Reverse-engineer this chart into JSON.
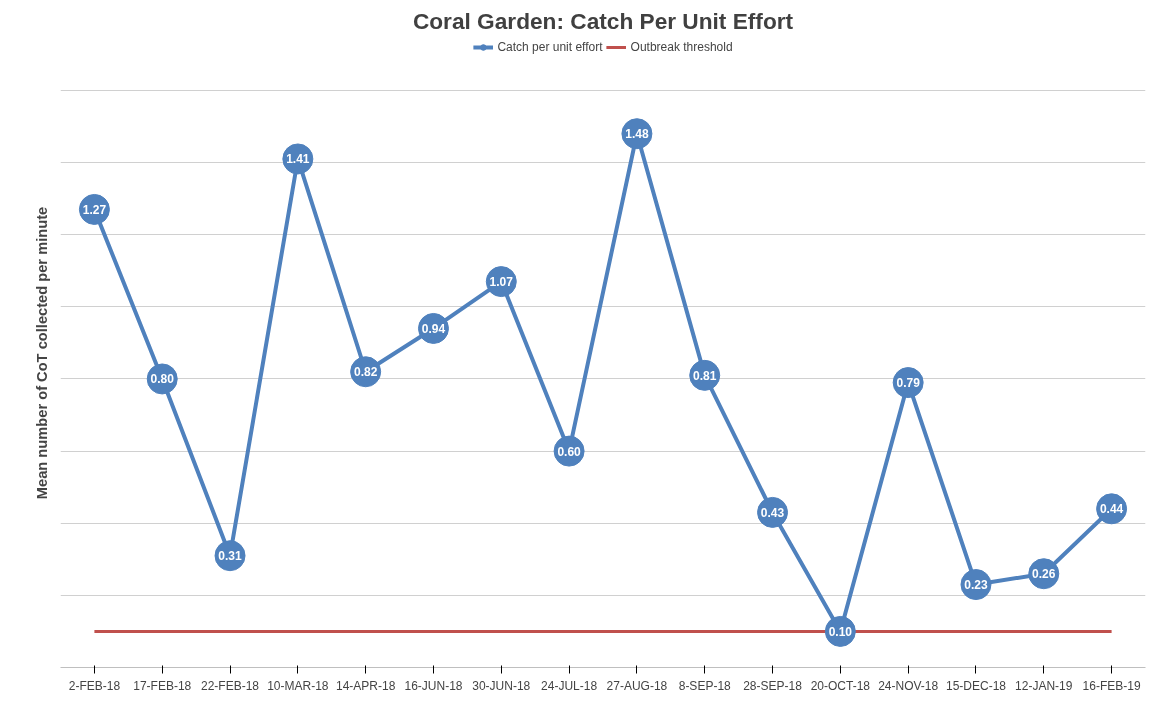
{
  "chart_data": {
    "type": "line",
    "title": "Coral Garden: Catch Per Unit Effort",
    "ylabel": "Mean number of CoT collected per minute",
    "categories": [
      "2-FEB-18",
      "17-FEB-18",
      "22-FEB-18",
      "10-MAR-18",
      "14-APR-18",
      "16-JUN-18",
      "30-JUN-18",
      "24-JUL-18",
      "27-AUG-18",
      "8-SEP-18",
      "28-SEP-18",
      "20-OCT-18",
      "24-NOV-18",
      "15-DEC-18",
      "12-JAN-19",
      "16-FEB-19"
    ],
    "series": [
      {
        "name": "Catch per unit effort",
        "color": "#4f81bd",
        "values": [
          1.27,
          0.8,
          0.31,
          1.41,
          0.82,
          0.94,
          1.07,
          0.6,
          1.48,
          0.81,
          0.43,
          0.1,
          0.79,
          0.23,
          0.26,
          0.44
        ],
        "value_labels": [
          "1.27",
          "0.80",
          "0.31",
          "1.41",
          "0.82",
          "0.94",
          "1.07",
          "0.60",
          "1.48",
          "0.81",
          "0.43",
          "0.10",
          "0.79",
          "0.23",
          "0.26",
          "0.44"
        ]
      }
    ],
    "ref_lines": [
      {
        "axis": "y",
        "value": 0.1,
        "label": "Outbreak threshold",
        "color": "#c0504d"
      }
    ],
    "yticks": [
      {
        "value": 0,
        "label": null
      },
      {
        "value": 0.2,
        "label": null
      },
      {
        "value": 0.4,
        "label": null
      },
      {
        "value": 0.6,
        "label": null
      },
      {
        "value": 0.8,
        "label": null
      },
      {
        "value": 1.0,
        "label": null
      },
      {
        "value": 1.2,
        "label": null
      },
      {
        "value": 1.4,
        "label": null
      },
      {
        "value": 1.6,
        "label": null
      }
    ],
    "tick_labels": "x",
    "grid": "y",
    "legend": "top",
    "marker": "circle",
    "line_style": "solid"
  }
}
